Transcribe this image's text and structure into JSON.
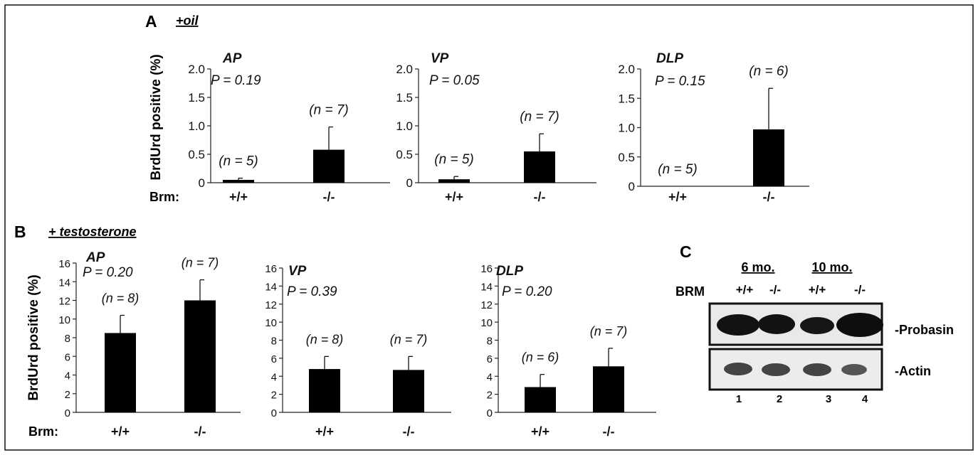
{
  "panel_a": {
    "label": "A",
    "treatment": "+oil",
    "ylabel": "BrdUrd positive (%)",
    "brm_label": "Brm:"
  },
  "panel_b": {
    "label": "B",
    "treatment": "+ testosterone",
    "ylabel": "BrdUrd positive (%)",
    "brm_label": "Brm:"
  },
  "panel_c": {
    "label": "C",
    "brm_label": "BRM",
    "groups": [
      "6 mo.",
      "10 mo."
    ],
    "genotypes": [
      "+/+",
      "-/-",
      "+/+",
      "-/-"
    ],
    "lanes": [
      "1",
      "2",
      "3",
      "4"
    ],
    "bands": [
      "-Probasin",
      "-Actin"
    ]
  },
  "chart_data": [
    {
      "type": "bar",
      "title": "AP",
      "pvalue": "P = 0.19",
      "categories": [
        "+/+",
        "-/-"
      ],
      "values": [
        0.05,
        0.58
      ],
      "errors": [
        0.03,
        0.4
      ],
      "n_labels": [
        "(n = 5)",
        "(n = 7)"
      ],
      "ylim": [
        0,
        2.0
      ],
      "yticks": [
        "0",
        "0.5",
        "1.0",
        "1.5",
        "2.0"
      ],
      "ylabel": "BrdUrd positive (%)"
    },
    {
      "type": "bar",
      "title": "VP",
      "pvalue": "P = 0.05",
      "categories": [
        "+/+",
        "-/-"
      ],
      "values": [
        0.06,
        0.55
      ],
      "errors": [
        0.05,
        0.31
      ],
      "n_labels": [
        "(n = 5)",
        "(n = 7)"
      ],
      "ylim": [
        0,
        2.0
      ],
      "yticks": [
        "0",
        "0.5",
        "1.0",
        "1.5",
        "2.0"
      ]
    },
    {
      "type": "bar",
      "title": "DLP",
      "pvalue": "P = 0.15",
      "categories": [
        "+/+",
        "-/-"
      ],
      "values": [
        0.0,
        0.97
      ],
      "errors": [
        0.0,
        0.7
      ],
      "n_labels": [
        "(n = 5)",
        "(n = 6)"
      ],
      "ylim": [
        0,
        2.0
      ],
      "yticks": [
        "0",
        "0.5",
        "1.0",
        "1.5",
        "2.0"
      ]
    },
    {
      "type": "bar",
      "title": "AP",
      "pvalue": "P = 0.20",
      "categories": [
        "+/+",
        "-/-"
      ],
      "values": [
        8.5,
        12.0
      ],
      "errors": [
        1.9,
        2.2
      ],
      "n_labels": [
        "(n = 8)",
        "(n = 7)"
      ],
      "ylim": [
        0,
        16
      ],
      "yticks": [
        "0",
        "2",
        "4",
        "6",
        "8",
        "10",
        "12",
        "14",
        "16"
      ],
      "ylabel": "BrdUrd positive (%)"
    },
    {
      "type": "bar",
      "title": "VP",
      "pvalue": "P = 0.39",
      "categories": [
        "+/+",
        "-/-"
      ],
      "values": [
        4.8,
        4.7
      ],
      "errors": [
        1.4,
        1.5
      ],
      "n_labels": [
        "(n = 8)",
        "(n = 7)"
      ],
      "ylim": [
        0,
        16
      ],
      "yticks": [
        "0",
        "2",
        "4",
        "6",
        "8",
        "10",
        "12",
        "14",
        "16"
      ]
    },
    {
      "type": "bar",
      "title": "DLP",
      "pvalue": "P = 0.20",
      "categories": [
        "+/+",
        "-/-"
      ],
      "values": [
        2.8,
        5.1
      ],
      "errors": [
        1.4,
        2.0
      ],
      "n_labels": [
        "(n = 6)",
        "(n = 7)"
      ],
      "ylim": [
        0,
        16
      ],
      "yticks": [
        "0",
        "2",
        "4",
        "6",
        "8",
        "10",
        "12",
        "14",
        "16"
      ]
    }
  ]
}
